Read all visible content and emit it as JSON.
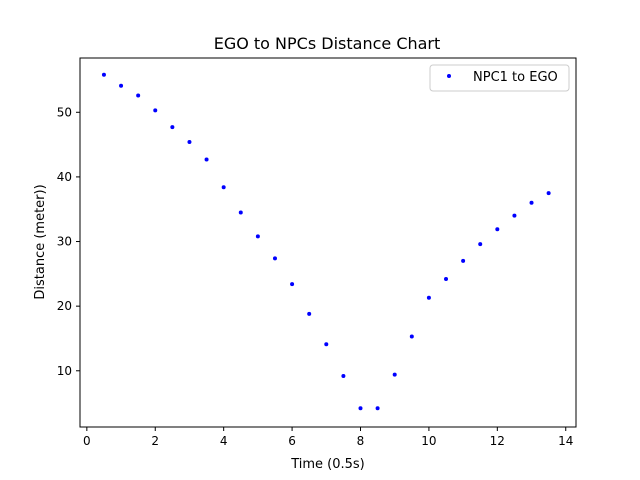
{
  "chart_data": {
    "type": "scatter",
    "title": "EGO to NPCs Distance Chart",
    "xlabel": "Time (0.5s)",
    "ylabel": "Distance (meter))",
    "xlim": [
      -0.2,
      14.3
    ],
    "ylim": [
      1.3,
      58.4
    ],
    "xticks": [
      0,
      2,
      4,
      6,
      8,
      10,
      12,
      14
    ],
    "yticks": [
      10,
      20,
      30,
      40,
      50
    ],
    "grid": false,
    "legend_position": "top-right",
    "series": [
      {
        "name": "NPC1 to EGO",
        "color": "#0000ff",
        "marker": "point",
        "x": [
          0.5,
          1.0,
          1.5,
          2.0,
          2.5,
          3.0,
          3.5,
          4.0,
          4.5,
          5.0,
          5.5,
          6.0,
          6.5,
          7.0,
          7.5,
          8.0,
          8.5,
          9.0,
          9.5,
          10.0,
          10.5,
          11.0,
          11.5,
          12.0,
          12.5,
          13.0,
          13.5
        ],
        "y": [
          55.8,
          54.1,
          52.6,
          50.3,
          47.7,
          45.4,
          42.7,
          38.4,
          34.5,
          30.8,
          27.4,
          23.4,
          18.8,
          14.1,
          9.2,
          4.2,
          4.2,
          9.4,
          15.3,
          21.3,
          24.2,
          27.0,
          29.6,
          31.9,
          34.0,
          36.0,
          37.5
        ]
      }
    ]
  }
}
